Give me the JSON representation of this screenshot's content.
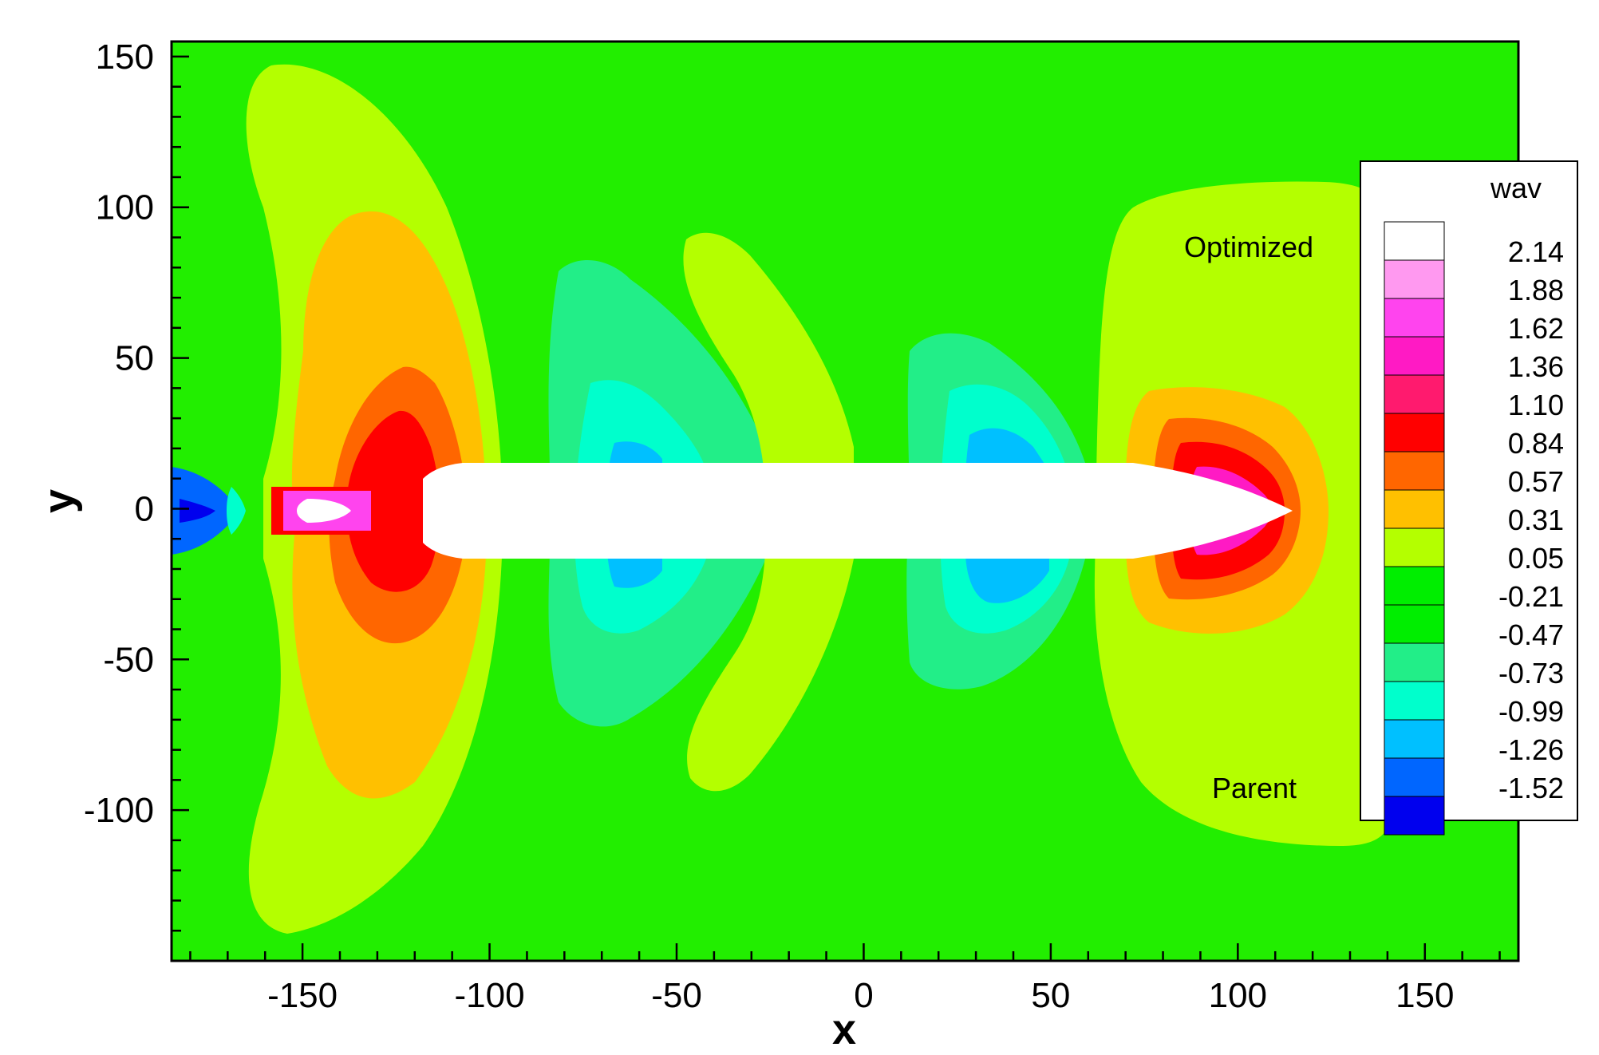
{
  "chart_data": {
    "type": "heatmap",
    "xlabel": "x",
    "ylabel": "y",
    "xlim": [
      -185,
      175
    ],
    "ylim": [
      -150,
      155
    ],
    "x_ticks": [
      -150,
      -100,
      -50,
      0,
      50,
      100,
      150
    ],
    "x_tick_labels": [
      "-150",
      "-100",
      "-50",
      "0",
      "50",
      "100",
      "150"
    ],
    "y_ticks": [
      150,
      100,
      50,
      0,
      -50,
      -100
    ],
    "y_tick_labels": [
      "150",
      "100",
      "50",
      "0",
      "-50",
      "-100"
    ],
    "grid": false,
    "colorbar": {
      "title": "wav",
      "placement": "right",
      "levels": [
        2.14,
        1.88,
        1.62,
        1.36,
        1.1,
        0.84,
        0.57,
        0.31,
        0.05,
        -0.21,
        -0.47,
        -0.73,
        -0.99,
        -1.26,
        -1.52
      ],
      "level_labels": [
        "2.14",
        "1.88",
        "1.62",
        "1.36",
        "1.10",
        "0.84",
        "0.57",
        "0.31",
        "0.05",
        "-0.21",
        "-0.47",
        "-0.73",
        "-0.99",
        "-1.26",
        "-1.52"
      ],
      "colors": [
        "#ffffff",
        "#ff99f0",
        "#ff44ee",
        "#ff1ac4",
        "#ff1a6e",
        "#ff0000",
        "#ff6600",
        "#ffc000",
        "#b4ff00",
        "#00ee00",
        "#00ee00",
        "#22ee88",
        "#00ffcc",
        "#00c0ff",
        "#0066ff",
        "#0000ee"
      ]
    },
    "annotations": [
      "Optimized",
      "Parent"
    ],
    "background_level_color": "#22ee00",
    "hull": {
      "x_start": -115,
      "x_end": 117,
      "half_width": 15
    }
  }
}
